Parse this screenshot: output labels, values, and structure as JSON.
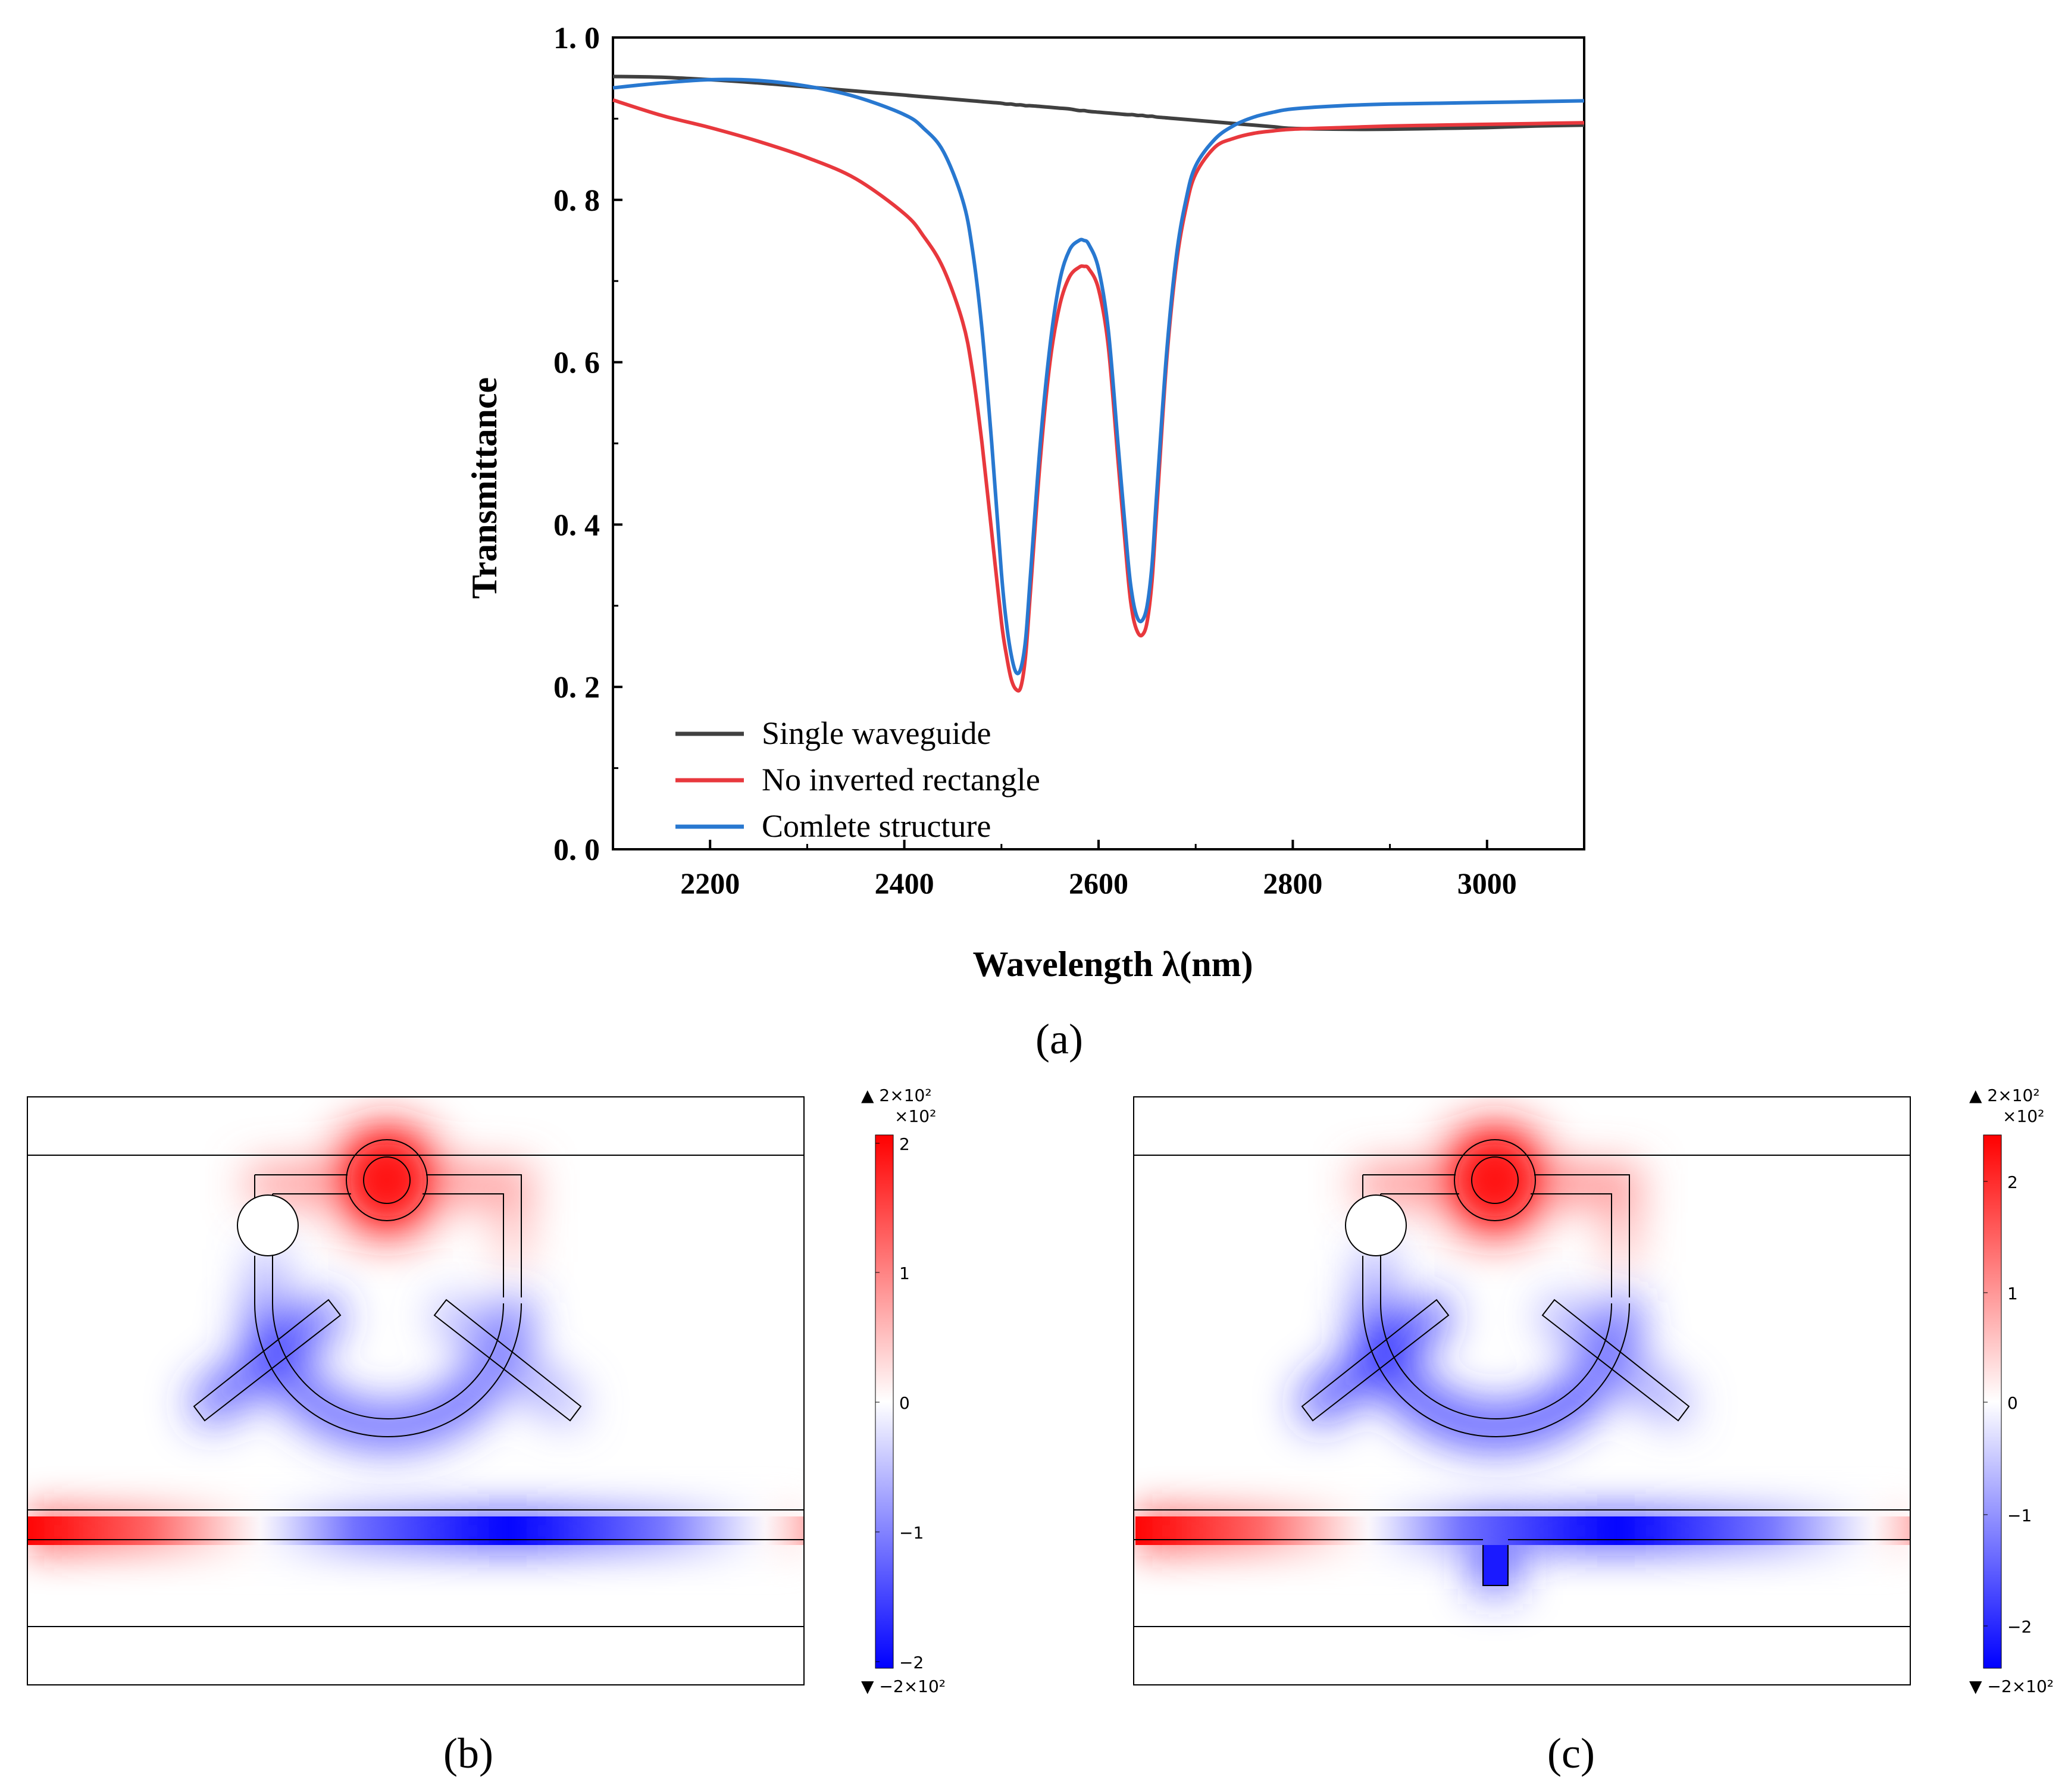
{
  "chart_data": {
    "type": "line",
    "xlabel": "Wavelength λ(nm)",
    "ylabel": "Transmittance",
    "xlim": [
      2100,
      3100
    ],
    "ylim": [
      0.0,
      1.0
    ],
    "x_ticks": [
      "2200",
      "2400",
      "2600",
      "2800",
      "3000"
    ],
    "x_tick_values": [
      2200,
      2400,
      2600,
      2800,
      3000
    ],
    "y_ticks": [
      "0. 0",
      "0. 2",
      "0. 4",
      "0. 6",
      "0. 8",
      "1. 0"
    ],
    "y_tick_values": [
      0.0,
      0.2,
      0.4,
      0.6,
      0.8,
      1.0
    ],
    "x": [
      2100,
      2150,
      2200,
      2250,
      2300,
      2350,
      2400,
      2420,
      2440,
      2460,
      2470,
      2480,
      2490,
      2500,
      2505,
      2510,
      2515,
      2520,
      2525,
      2530,
      2540,
      2550,
      2560,
      2570,
      2580,
      2585,
      2590,
      2600,
      2610,
      2620,
      2630,
      2635,
      2640,
      2645,
      2650,
      2655,
      2660,
      2670,
      2680,
      2690,
      2700,
      2720,
      2740,
      2760,
      2780,
      2800,
      2850,
      2900,
      2950,
      3000,
      3050,
      3100
    ],
    "series": [
      {
        "name": "Single waveguide",
        "color": "#404040",
        "values": [
          0.952,
          0.951,
          0.948,
          0.944,
          0.939,
          0.934,
          0.929,
          0.927,
          0.925,
          0.923,
          0.922,
          0.921,
          0.92,
          0.919,
          0.918,
          0.918,
          0.917,
          0.917,
          0.916,
          0.916,
          0.915,
          0.914,
          0.913,
          0.912,
          0.91,
          0.91,
          0.909,
          0.908,
          0.907,
          0.906,
          0.905,
          0.905,
          0.904,
          0.904,
          0.903,
          0.903,
          0.902,
          0.901,
          0.9,
          0.899,
          0.898,
          0.896,
          0.894,
          0.892,
          0.89,
          0.888,
          0.887,
          0.887,
          0.888,
          0.889,
          0.891,
          0.892
        ]
      },
      {
        "name": "No inverted rectangle",
        "color": "#e8383d",
        "values": [
          0.923,
          0.904,
          0.889,
          0.872,
          0.852,
          0.826,
          0.783,
          0.755,
          0.716,
          0.65,
          0.59,
          0.5,
          0.39,
          0.28,
          0.24,
          0.21,
          0.197,
          0.2,
          0.24,
          0.32,
          0.48,
          0.6,
          0.67,
          0.705,
          0.717,
          0.718,
          0.715,
          0.69,
          0.62,
          0.48,
          0.34,
          0.29,
          0.268,
          0.264,
          0.28,
          0.33,
          0.42,
          0.6,
          0.72,
          0.79,
          0.832,
          0.865,
          0.876,
          0.882,
          0.885,
          0.887,
          0.889,
          0.891,
          0.892,
          0.893,
          0.894,
          0.895
        ]
      },
      {
        "name": "Comlete structure",
        "color": "#2878d0",
        "values": [
          0.938,
          0.944,
          0.948,
          0.947,
          0.94,
          0.927,
          0.905,
          0.888,
          0.86,
          0.8,
          0.74,
          0.64,
          0.5,
          0.34,
          0.28,
          0.24,
          0.218,
          0.223,
          0.26,
          0.34,
          0.5,
          0.62,
          0.7,
          0.738,
          0.75,
          0.75,
          0.745,
          0.715,
          0.64,
          0.5,
          0.36,
          0.31,
          0.285,
          0.282,
          0.3,
          0.35,
          0.44,
          0.61,
          0.73,
          0.8,
          0.842,
          0.875,
          0.892,
          0.902,
          0.908,
          0.912,
          0.916,
          0.918,
          0.919,
          0.92,
          0.921,
          0.922
        ]
      }
    ]
  },
  "figure_labels": {
    "a": "(a)",
    "b": "(b)",
    "c": "(c)"
  },
  "field_maps": [
    {
      "id": "b",
      "colorbar": {
        "top_marker": "▲ 2×10²",
        "exponent": "×10²",
        "bottom_marker": "▼ −2×10²",
        "ticks": [
          "2",
          "1",
          "0",
          "−1",
          "−2"
        ],
        "max_color": "#ff0000",
        "min_color": "#0000ff"
      },
      "has_bottom_stub": false
    },
    {
      "id": "c",
      "colorbar": {
        "top_marker": "▲ 2×10²",
        "exponent": "×10²",
        "bottom_marker": "▼ −2×10²",
        "ticks": [
          "2",
          "1",
          "0",
          "−1",
          "−2"
        ],
        "max_color": "#ff0000",
        "min_color": "#0000ff"
      },
      "has_bottom_stub": true
    }
  ]
}
